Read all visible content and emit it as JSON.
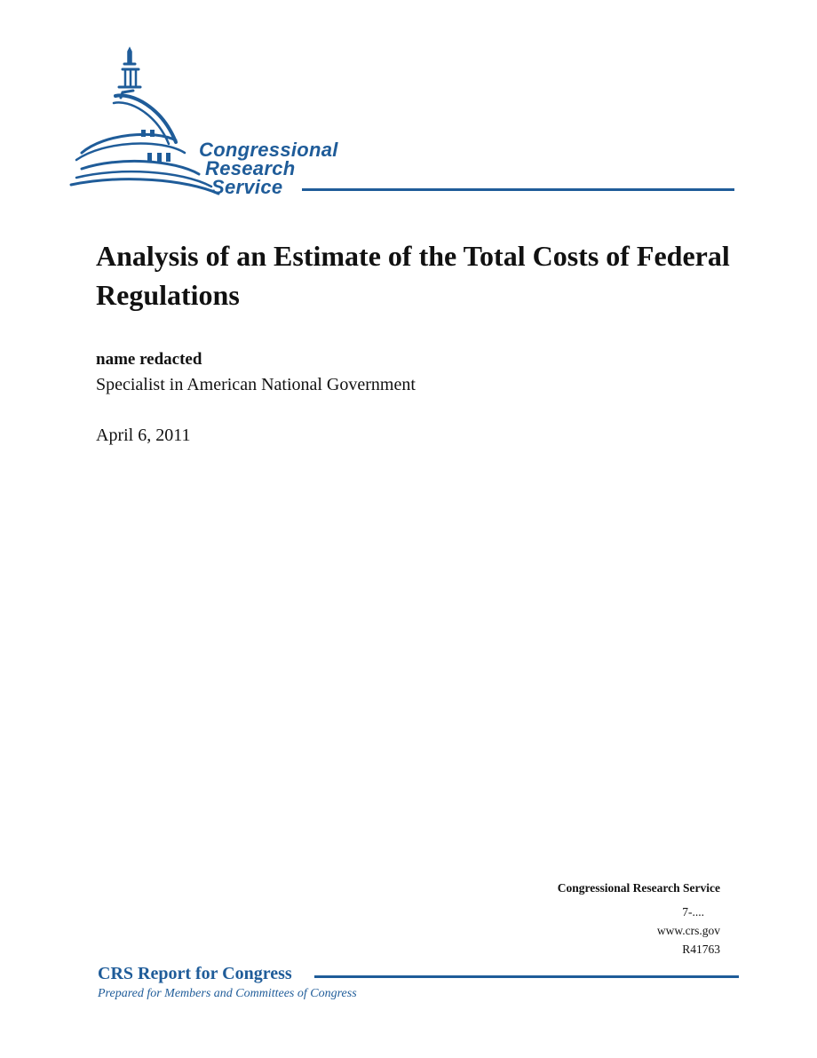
{
  "logo": {
    "line1": "Congressional",
    "line2": "Research",
    "line3": "Service",
    "color": "#1f5c99"
  },
  "report": {
    "title": "Analysis of an Estimate of the Total Costs of Federal Regulations",
    "author_name": "name redacted",
    "author_role": "Specialist in American National Government",
    "date": "April 6, 2011"
  },
  "crs": {
    "org": "Congressional Research Service",
    "number": "7-....",
    "website": "www.crs.gov",
    "report_id": "R41763"
  },
  "footer": {
    "title": "CRS Report for Congress",
    "subtitle": "Prepared for Members and Committees of Congress",
    "color": "#1f5c99"
  }
}
